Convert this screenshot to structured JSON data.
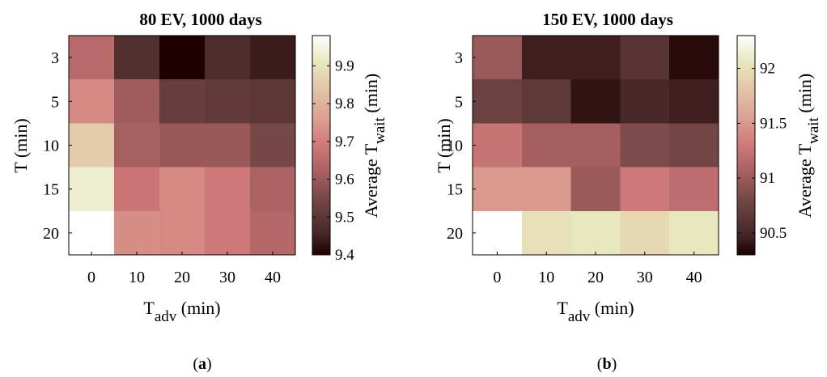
{
  "chart_data": [
    {
      "type": "heatmap",
      "panel_label": "a",
      "title": "80 EV, 1000 days",
      "x_categories": [
        0,
        10,
        20,
        30,
        40
      ],
      "y_categories": [
        3,
        5,
        10,
        15,
        20
      ],
      "xlabel": {
        "main": "T",
        "sub": "adv",
        "unit": " (min)"
      },
      "ylabel": "T (min)",
      "colorbar_label": {
        "main": "Average T",
        "sub": "wait",
        "unit": " (min)"
      },
      "colorbar_ticks": [
        9.4,
        9.5,
        9.6,
        9.7,
        9.8,
        9.9
      ],
      "colorbar_ticklabels": [
        "9.4",
        "9.5",
        "9.6",
        "9.7",
        "9.8",
        "9.9"
      ],
      "clim": [
        9.4,
        9.98
      ],
      "colormap": "pink",
      "values": [
        [
          9.65,
          9.48,
          9.4,
          9.47,
          9.44
        ],
        [
          9.72,
          9.61,
          9.52,
          9.51,
          9.5
        ],
        [
          9.85,
          9.62,
          9.6,
          9.6,
          9.55
        ],
        [
          9.93,
          9.68,
          9.72,
          9.69,
          9.63
        ],
        [
          9.98,
          9.73,
          9.72,
          9.69,
          9.64
        ]
      ]
    },
    {
      "type": "heatmap",
      "panel_label": "b",
      "title": "150 EV, 1000 days",
      "x_categories": [
        0,
        10,
        20,
        30,
        40
      ],
      "y_categories": [
        3,
        5,
        10,
        15,
        20
      ],
      "xlabel": {
        "main": "T",
        "sub": "adv",
        "unit": " (min)"
      },
      "ylabel": "T (min)",
      "colorbar_label": {
        "main": "Average T",
        "sub": "wait",
        "unit": " (min)"
      },
      "colorbar_ticks": [
        90.5,
        91,
        91.5,
        92
      ],
      "colorbar_ticklabels": [
        "90.5",
        "91",
        "91.5",
        "92"
      ],
      "clim": [
        90.3,
        92.3
      ],
      "colormap": "pink",
      "values": [
        [
          91.0,
          90.45,
          90.45,
          90.62,
          90.35
        ],
        [
          90.75,
          90.65,
          90.4,
          90.5,
          90.45
        ],
        [
          91.25,
          91.05,
          91.05,
          90.85,
          90.8
        ],
        [
          91.5,
          91.5,
          91.0,
          91.3,
          91.2
        ],
        [
          92.3,
          92.0,
          92.05,
          91.95,
          92.05
        ]
      ]
    }
  ]
}
